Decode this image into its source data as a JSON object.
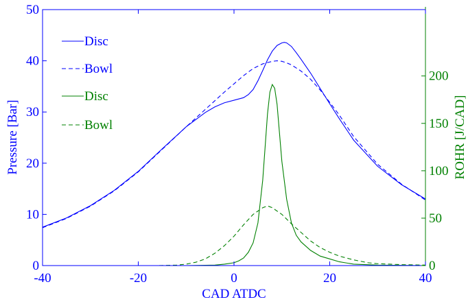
{
  "colors": {
    "pressure": "#0000ff",
    "rohr": "#008000",
    "frame": "#0000ff",
    "background": "#ffffff"
  },
  "chart_data": {
    "type": "line",
    "title": "",
    "xlabel": "CAD ATDC",
    "ylabel_left": "Pressure [Bar]",
    "ylabel_right": "ROHR [J/CAD]",
    "xlim": [
      -40,
      40
    ],
    "ylim_left": [
      0,
      50
    ],
    "ylim_right": [
      0,
      270
    ],
    "xticks": [
      "-40",
      "-20",
      "0",
      "20",
      "40"
    ],
    "yticks_left": [
      "0",
      "10",
      "20",
      "30",
      "40",
      "50"
    ],
    "yticks_right": [
      "0",
      "50",
      "100",
      "150",
      "200"
    ],
    "grid": false,
    "legend_position": "top-left",
    "series": [
      {
        "name": "Disc",
        "axis": "left",
        "color": "#0000ff",
        "style": "solid",
        "x": [
          -40,
          -35,
          -30,
          -25,
          -20,
          -15,
          -10,
          -6,
          -4,
          -2,
          0,
          2,
          3,
          4,
          5,
          6,
          7,
          8,
          9,
          10,
          10.5,
          11,
          12,
          13,
          14,
          16,
          18,
          20,
          22,
          25,
          30,
          35,
          40
        ],
        "y": [
          7.5,
          9.3,
          11.7,
          14.7,
          18.4,
          22.8,
          27.1,
          29.9,
          31.0,
          31.8,
          32.3,
          32.8,
          33.4,
          34.4,
          36.1,
          38.1,
          40.2,
          41.9,
          43.0,
          43.5,
          43.6,
          43.5,
          42.8,
          41.6,
          40.3,
          37.6,
          34.6,
          31.6,
          28.7,
          24.5,
          19.4,
          15.8,
          13.0
        ]
      },
      {
        "name": "Bowl",
        "axis": "left",
        "color": "#0000ff",
        "style": "dashed",
        "x": [
          -40,
          -35,
          -30,
          -25,
          -20,
          -15,
          -10,
          -6,
          -4,
          -2,
          0,
          2,
          4,
          6,
          8,
          9,
          10,
          11,
          12,
          14,
          16,
          18,
          20,
          22,
          25,
          30,
          35,
          40
        ],
        "y": [
          7.4,
          9.2,
          11.6,
          14.6,
          18.3,
          22.7,
          27.1,
          30.5,
          32.2,
          33.9,
          35.5,
          37.1,
          38.5,
          39.4,
          39.9,
          40.0,
          39.9,
          39.6,
          39.2,
          38.0,
          36.4,
          34.3,
          31.9,
          29.4,
          25.2,
          19.8,
          15.9,
          12.8
        ]
      },
      {
        "name": "Disc",
        "axis": "right",
        "color": "#008000",
        "style": "solid",
        "x": [
          -40,
          -10,
          -4,
          -2,
          0,
          1,
          2,
          3,
          4,
          5,
          6,
          6.5,
          7,
          7.5,
          8,
          8.5,
          9,
          9.5,
          10,
          11,
          12,
          13,
          14,
          16,
          18,
          20,
          22,
          25,
          30,
          40
        ],
        "y": [
          0,
          0,
          0.5,
          1.5,
          3,
          5,
          8,
          14,
          24,
          45,
          90,
          125,
          160,
          183,
          191,
          187,
          170,
          140,
          110,
          70,
          45,
          32,
          25,
          16,
          10,
          7,
          4,
          1.5,
          0.5,
          0
        ]
      },
      {
        "name": "Bowl",
        "axis": "right",
        "color": "#008000",
        "style": "dashed",
        "x": [
          -40,
          -16,
          -12,
          -10,
          -8,
          -6,
          -4,
          -2,
          0,
          2,
          4,
          6,
          7,
          8,
          10,
          12,
          14,
          16,
          18,
          20,
          22,
          25,
          28,
          30,
          35,
          40
        ],
        "y": [
          0,
          0,
          0.5,
          1.5,
          3.5,
          7,
          13,
          21,
          31,
          43,
          54,
          61,
          63,
          61,
          54,
          44,
          35,
          26,
          19,
          14,
          10,
          6,
          3,
          2,
          1,
          0.5
        ]
      }
    ]
  }
}
